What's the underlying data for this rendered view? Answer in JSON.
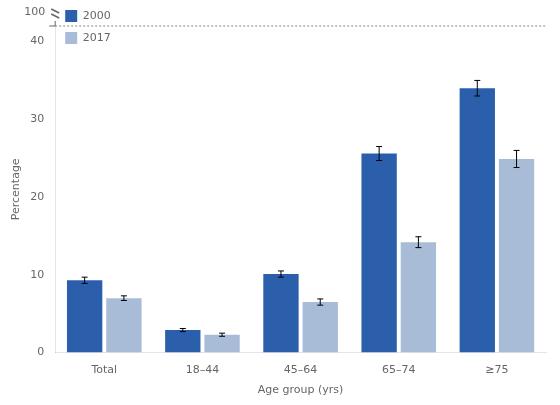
{
  "chart_data": {
    "type": "bar",
    "categories": [
      "Total",
      "18–44",
      "45–64",
      "65–74",
      "≥75"
    ],
    "series": [
      {
        "name": "2000",
        "color": "#2b5fac",
        "values": [
          9.3,
          2.9,
          10.1,
          25.6,
          34.0
        ],
        "errors": [
          0.4,
          0.2,
          0.4,
          0.9,
          1.0
        ]
      },
      {
        "name": "2017",
        "color": "#a8bcd8",
        "values": [
          7.0,
          2.3,
          6.5,
          14.2,
          24.9
        ],
        "errors": [
          0.3,
          0.2,
          0.4,
          0.7,
          1.1
        ]
      }
    ],
    "xlabel": "Age group (yrs)",
    "ylabel": "Percentage",
    "ylim": [
      0,
      42
    ],
    "yticks": [
      0,
      10,
      20,
      30,
      40
    ],
    "annotations": [
      "100"
    ],
    "legend": "upper left",
    "grid": false
  }
}
